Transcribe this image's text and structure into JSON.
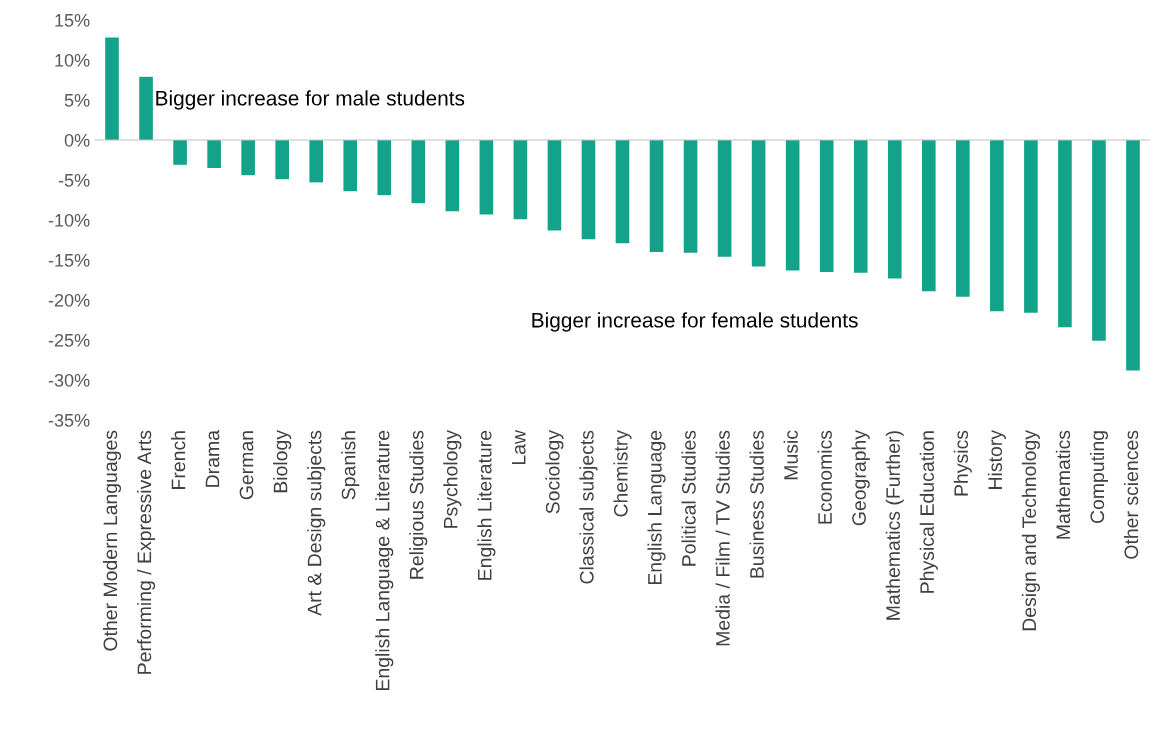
{
  "chart_data": {
    "type": "bar",
    "categories": [
      "Other Modern Languages",
      "Performing / Expressive Arts",
      "French",
      "Drama",
      "German",
      "Biology",
      "Art & Design subjects",
      "Spanish",
      "English Language & Literature",
      "Religious Studies",
      "Psychology",
      "English Literature",
      "Law",
      "Sociology",
      "Classical subjects",
      "Chemistry",
      "English Language",
      "Political Studies",
      "Media / Film / TV Studies",
      "Business Studies",
      "Music",
      "Economics",
      "Geography",
      "Mathematics (Further)",
      "Physical Education",
      "Physics",
      "History",
      "Design and Technology",
      "Mathematics",
      "Computing",
      "Other sciences"
    ],
    "values": [
      12.8,
      7.9,
      -3.1,
      -3.5,
      -4.4,
      -4.9,
      -5.3,
      -6.4,
      -6.9,
      -7.9,
      -8.9,
      -9.3,
      -9.9,
      -11.3,
      -12.4,
      -12.9,
      -14.0,
      -14.1,
      -14.6,
      -15.8,
      -16.3,
      -16.5,
      -16.6,
      -17.3,
      -18.9,
      -19.6,
      -21.4,
      -21.6,
      -23.4,
      -25.1,
      -28.8
    ],
    "color": "#13a38a",
    "ylim": [
      -35,
      15
    ],
    "yticks": [
      {
        "value": -35,
        "label": "-35%"
      },
      {
        "value": -30,
        "label": "-30%"
      },
      {
        "value": -25,
        "label": "-25%"
      },
      {
        "value": -20,
        "label": "-20%"
      },
      {
        "value": -15,
        "label": "-15%"
      },
      {
        "value": -10,
        "label": "-10%"
      },
      {
        "value": -5,
        "label": "-5%"
      },
      {
        "value": 0,
        "label": "0%"
      },
      {
        "value": 5,
        "label": "5%"
      },
      {
        "value": 10,
        "label": "10%"
      },
      {
        "value": 15,
        "label": "15%"
      }
    ],
    "annotations": [
      "Bigger increase for male students",
      "Bigger increase for female students"
    ]
  }
}
